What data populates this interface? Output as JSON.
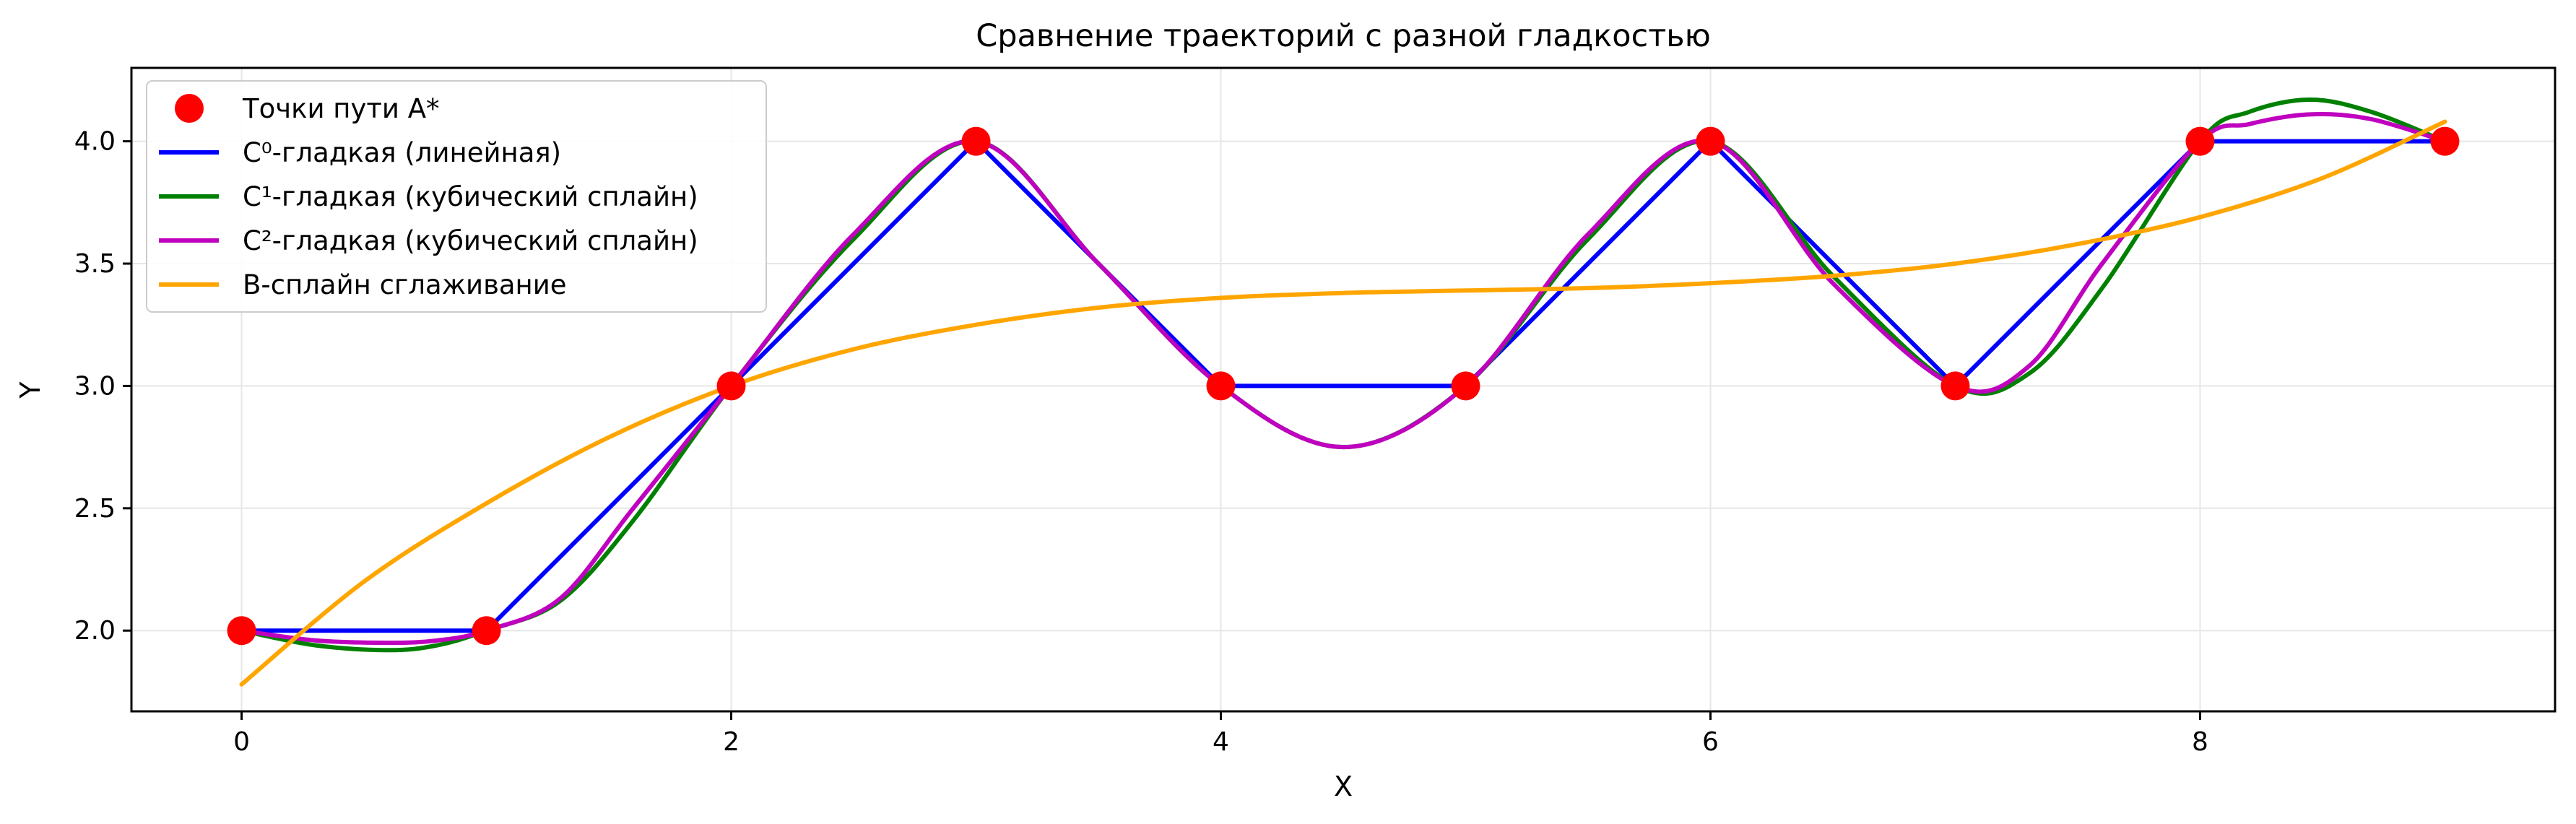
{
  "chart_data": {
    "type": "line",
    "title": "Сравнение траекторий с разной гладкостью",
    "xlabel": "X",
    "ylabel": "Y",
    "xlim": [
      -0.45,
      9.45
    ],
    "ylim": [
      1.67,
      4.3
    ],
    "xticks": [
      0,
      2,
      4,
      6,
      8
    ],
    "yticks": [
      2.0,
      2.5,
      3.0,
      3.5,
      4.0
    ],
    "xtick_labels": [
      "0",
      "2",
      "4",
      "6",
      "8"
    ],
    "ytick_labels": [
      "2.0",
      "2.5",
      "3.0",
      "3.5",
      "4.0"
    ],
    "grid": true,
    "legend_position": "top-left",
    "points": {
      "name": "Точки пути A*",
      "color": "#ff0000",
      "x": [
        0,
        1,
        2,
        3,
        4,
        5,
        6,
        7,
        8,
        9
      ],
      "y": [
        2,
        2,
        3,
        4,
        3,
        3,
        4,
        3,
        4,
        4
      ]
    },
    "series": [
      {
        "name": "C⁰-гладкая (линейная)",
        "color": "#0000ff",
        "x": [
          0,
          1,
          2,
          3,
          4,
          5,
          6,
          7,
          8,
          9
        ],
        "y": [
          2,
          2,
          3,
          4,
          3,
          3,
          4,
          3,
          4,
          4
        ]
      },
      {
        "name": "C¹-гладкая (кубический сплайн)",
        "color": "#008000",
        "x": [
          0,
          0.3,
          0.6,
          0.8,
          1,
          1.3,
          1.6,
          2,
          2.5,
          3,
          3.5,
          4,
          4.5,
          5,
          5.5,
          6,
          6.5,
          7,
          7.3,
          7.6,
          8,
          8.2,
          8.45,
          8.7,
          9
        ],
        "y": [
          2,
          1.94,
          1.92,
          1.94,
          2,
          2.12,
          2.45,
          3,
          3.6,
          4,
          3.5,
          3,
          2.75,
          3,
          3.6,
          4,
          3.45,
          3,
          3.05,
          3.4,
          4,
          4.12,
          4.17,
          4.12,
          4
        ]
      },
      {
        "name": "C²-гладкая (кубический сплайн)",
        "color": "#bf00bf",
        "x": [
          0,
          0.3,
          0.6,
          0.8,
          1,
          1.3,
          1.6,
          2,
          2.5,
          3,
          3.5,
          4,
          4.5,
          5,
          5.5,
          6,
          6.5,
          7,
          7.3,
          7.6,
          8,
          8.2,
          8.45,
          8.7,
          9
        ],
        "y": [
          2,
          1.96,
          1.95,
          1.96,
          2,
          2.13,
          2.5,
          3,
          3.62,
          4,
          3.5,
          3,
          2.75,
          3,
          3.62,
          4,
          3.42,
          3,
          3.08,
          3.5,
          4,
          4.07,
          4.11,
          4.09,
          4
        ]
      },
      {
        "name": "B-сплайн сглаживание",
        "color": "#ffa500",
        "x": [
          0,
          0.5,
          1,
          1.5,
          2,
          2.5,
          3,
          3.5,
          4,
          4.5,
          5,
          5.5,
          6,
          6.5,
          7,
          7.5,
          8,
          8.5,
          9
        ],
        "y": [
          1.78,
          2.2,
          2.52,
          2.79,
          3.0,
          3.15,
          3.25,
          3.32,
          3.36,
          3.38,
          3.39,
          3.4,
          3.42,
          3.45,
          3.5,
          3.58,
          3.69,
          3.85,
          4.08
        ]
      }
    ]
  }
}
